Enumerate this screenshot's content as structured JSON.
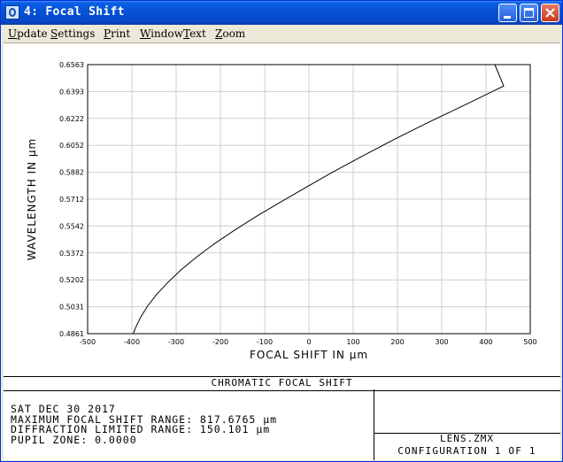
{
  "window": {
    "title": "4: Focal Shift",
    "buttons": {
      "minimize": "minimize",
      "maximize": "maximize",
      "close": "close"
    }
  },
  "menu": [
    {
      "key": "U",
      "rest": "pdate"
    },
    {
      "key": "S",
      "rest": "ettings"
    },
    {
      "key": "P",
      "rest": "rint"
    },
    {
      "key": "W",
      "rest": "indow"
    },
    {
      "key": "T",
      "rest": "ext"
    },
    {
      "key": "Z",
      "rest": "oom"
    }
  ],
  "chart_data": {
    "type": "line",
    "xlabel": "FOCAL SHIFT IN µm",
    "ylabel": "WAVELENGTH IN µm",
    "xlim": [
      -500,
      500
    ],
    "ylim": [
      0.4861,
      0.6563
    ],
    "x_ticks": [
      "-500",
      "-400",
      "-300",
      "-200",
      "-100",
      "0",
      "100",
      "200",
      "300",
      "400",
      "500"
    ],
    "y_ticks": [
      "0.4861",
      "0.5031",
      "0.5202",
      "0.5372",
      "0.5542",
      "0.5712",
      "0.5882",
      "0.6052",
      "0.6222",
      "0.6393",
      "0.6563"
    ],
    "grid": true,
    "series": [
      {
        "x": [
          -397,
          -390,
          -380,
          -365,
          -345,
          -320,
          -290,
          -255,
          -215,
          -170,
          -120,
          -65,
          -5,
          55,
          120,
          190,
          265,
          345,
          420
        ],
        "y": [
          0.4861,
          0.4909,
          0.4966,
          0.5034,
          0.5106,
          0.5182,
          0.5262,
          0.5343,
          0.5427,
          0.5512,
          0.5601,
          0.5692,
          0.5789,
          0.5885,
          0.5983,
          0.6086,
          0.6191,
          0.6298,
          0.64
        ]
      },
      {
        "x": [
          420,
          440,
          420
        ],
        "y": [
          0.64,
          0.6428,
          0.6563
        ]
      }
    ],
    "color": "#000000"
  },
  "caption": "CHROMATIC FOCAL SHIFT",
  "info": {
    "date": "SAT DEC 30 2017",
    "max_range": "MAXIMUM FOCAL SHIFT RANGE: 817.6765 µm",
    "diff_range": "DIFFRACTION LIMITED RANGE: 150.101 µm",
    "pupil": "PUPIL ZONE: 0.0000"
  },
  "lens": {
    "file": "LENS.ZMX",
    "configuration": "CONFIGURATION 1 OF 1"
  }
}
